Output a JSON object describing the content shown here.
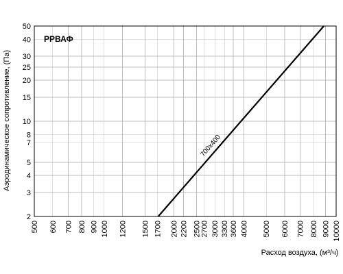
{
  "chart_data": {
    "type": "line",
    "title": "РРВАФ",
    "xlabel": "Расход воздуха, (м³/ч)",
    "ylabel": "Аэродинамическое сопротивление, (Па)",
    "x_scale": "log",
    "y_scale": "log",
    "xlim": [
      500,
      10000
    ],
    "ylim": [
      2,
      50
    ],
    "x_ticks": [
      500,
      600,
      700,
      800,
      900,
      1000,
      1200,
      1500,
      1700,
      2000,
      2200,
      2500,
      2700,
      3000,
      3300,
      3600,
      4000,
      5000,
      6000,
      7000,
      8000,
      9000,
      10000
    ],
    "y_ticks": [
      2,
      3,
      4,
      5,
      7,
      8,
      10,
      15,
      20,
      25,
      30,
      40,
      50
    ],
    "grid": true,
    "series": [
      {
        "name": "700x400",
        "x": [
          1710,
          8850
        ],
        "y": [
          2,
          50
        ]
      }
    ]
  }
}
